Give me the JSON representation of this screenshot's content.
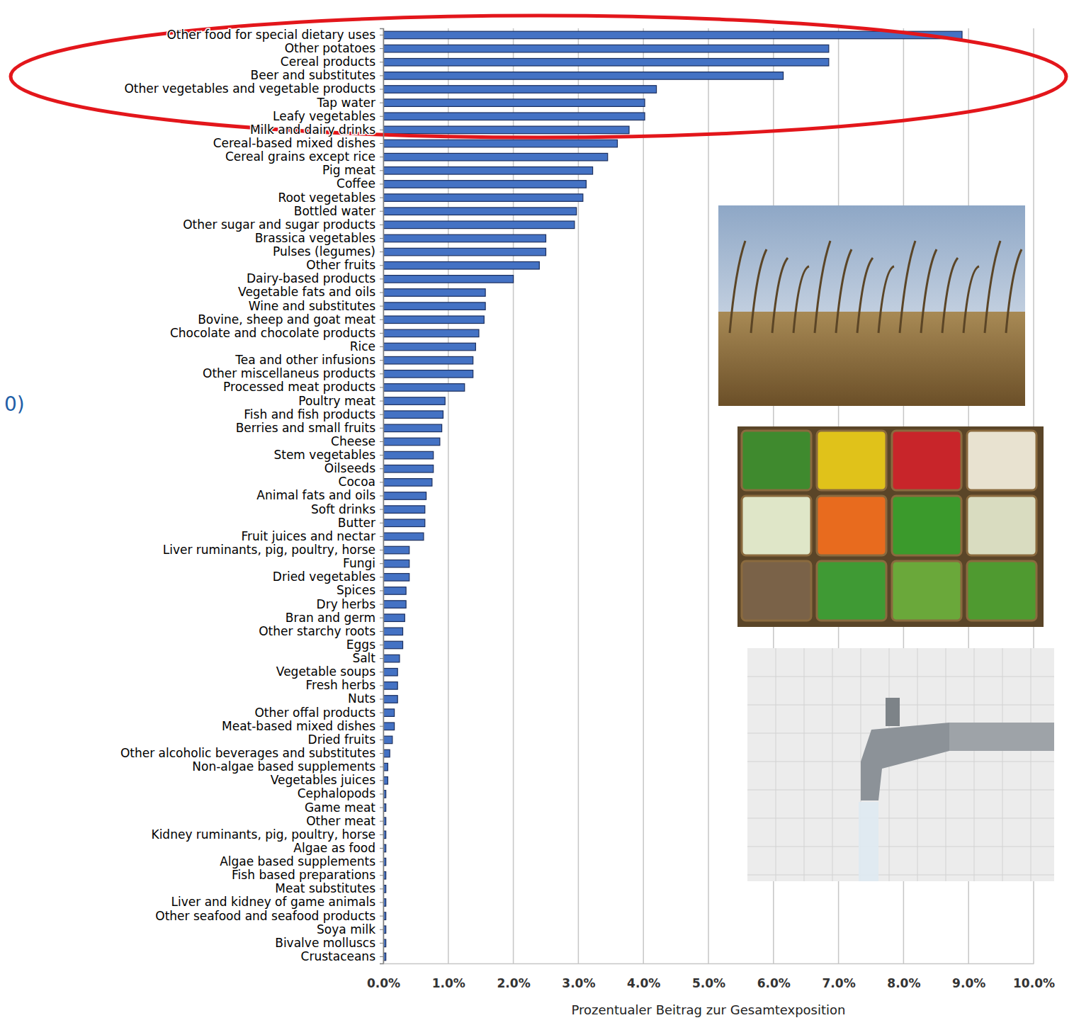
{
  "chart_data": {
    "type": "bar",
    "orientation": "horizontal",
    "color": "#4472c4",
    "grid": true,
    "xlabel": "Prozentualer Beitrag zur Gesamtexposition",
    "annotation": "0)",
    "xlim": [
      0,
      10
    ],
    "xticks": [
      {
        "value": 0,
        "label": "0.0%"
      },
      {
        "value": 1,
        "label": "1.0%"
      },
      {
        "value": 2,
        "label": "2.0%"
      },
      {
        "value": 3,
        "label": "3.0%"
      },
      {
        "value": 4,
        "label": "4.0%"
      },
      {
        "value": 5,
        "label": "5.0%"
      },
      {
        "value": 6,
        "label": "6.0%"
      },
      {
        "value": 7,
        "label": "7.0%"
      },
      {
        "value": 8,
        "label": "8.0%"
      },
      {
        "value": 9,
        "label": "9.0%"
      },
      {
        "value": 10,
        "label": "10.0%"
      }
    ],
    "categories": [
      "Other food for special dietary uses",
      "Other potatoes",
      "Cereal products",
      "Beer and substitutes",
      "Other vegetables and vegetable products",
      "Tap water",
      "Leafy vegetables",
      "Milk and dairy drinks",
      "Cereal-based mixed dishes",
      "Cereal grains except rice",
      "Pig meat",
      "Coffee",
      "Root vegetables",
      "Bottled water",
      "Other sugar and sugar products",
      "Brassica vegetables",
      "Pulses (legumes)",
      "Other fruits",
      "Dairy-based products",
      "Vegetable fats and oils",
      "Wine and substitutes",
      "Bovine, sheep and goat meat",
      "Chocolate and chocolate products",
      "Rice",
      "Tea and other infusions",
      "Other miscellaneus products",
      "Processed meat products",
      "Poultry meat",
      "Fish and fish products",
      "Berries and small fruits",
      "Cheese",
      "Stem vegetables",
      "Oilseeds",
      "Cocoa",
      "Animal fats and oils",
      "Soft drinks",
      "Butter",
      "Fruit juices and nectar",
      "Liver ruminants, pig, poultry, horse",
      "Fungi",
      "Dried vegetables",
      "Spices",
      "Dry herbs",
      "Bran and germ",
      "Other starchy roots",
      "Eggs",
      "Salt",
      "Vegetable soups",
      "Fresh herbs",
      "Nuts",
      "Other offal products",
      "Meat-based mixed dishes",
      "Dried fruits",
      "Other alcoholic beverages and substitutes",
      "Non-algae based supplements",
      "Vegetables juices",
      "Cephalopods",
      "Game meat",
      "Other meat",
      "Kidney ruminants, pig, poultry, horse",
      "Algae as food",
      "Algae based supplements",
      "Fish based preparations",
      "Meat substitutes",
      "Liver and kidney of game animals",
      "Other seafood and seafood products",
      "Soya milk",
      "Bivalve molluscs",
      "Crustaceans"
    ],
    "values": [
      8.9,
      6.85,
      6.85,
      6.15,
      4.2,
      4.02,
      4.02,
      3.78,
      3.6,
      3.45,
      3.22,
      3.12,
      3.07,
      2.97,
      2.94,
      2.5,
      2.5,
      2.4,
      2.0,
      1.57,
      1.57,
      1.55,
      1.47,
      1.42,
      1.38,
      1.38,
      1.25,
      0.95,
      0.92,
      0.9,
      0.87,
      0.77,
      0.77,
      0.75,
      0.66,
      0.64,
      0.64,
      0.62,
      0.4,
      0.4,
      0.4,
      0.35,
      0.35,
      0.33,
      0.3,
      0.3,
      0.25,
      0.22,
      0.22,
      0.22,
      0.17,
      0.17,
      0.14,
      0.1,
      0.07,
      0.07,
      0.04,
      0.04,
      0.04,
      0.04,
      0.04,
      0.04,
      0.04,
      0.04,
      0.04,
      0.04,
      0.04,
      0.04,
      0.04
    ]
  }
}
